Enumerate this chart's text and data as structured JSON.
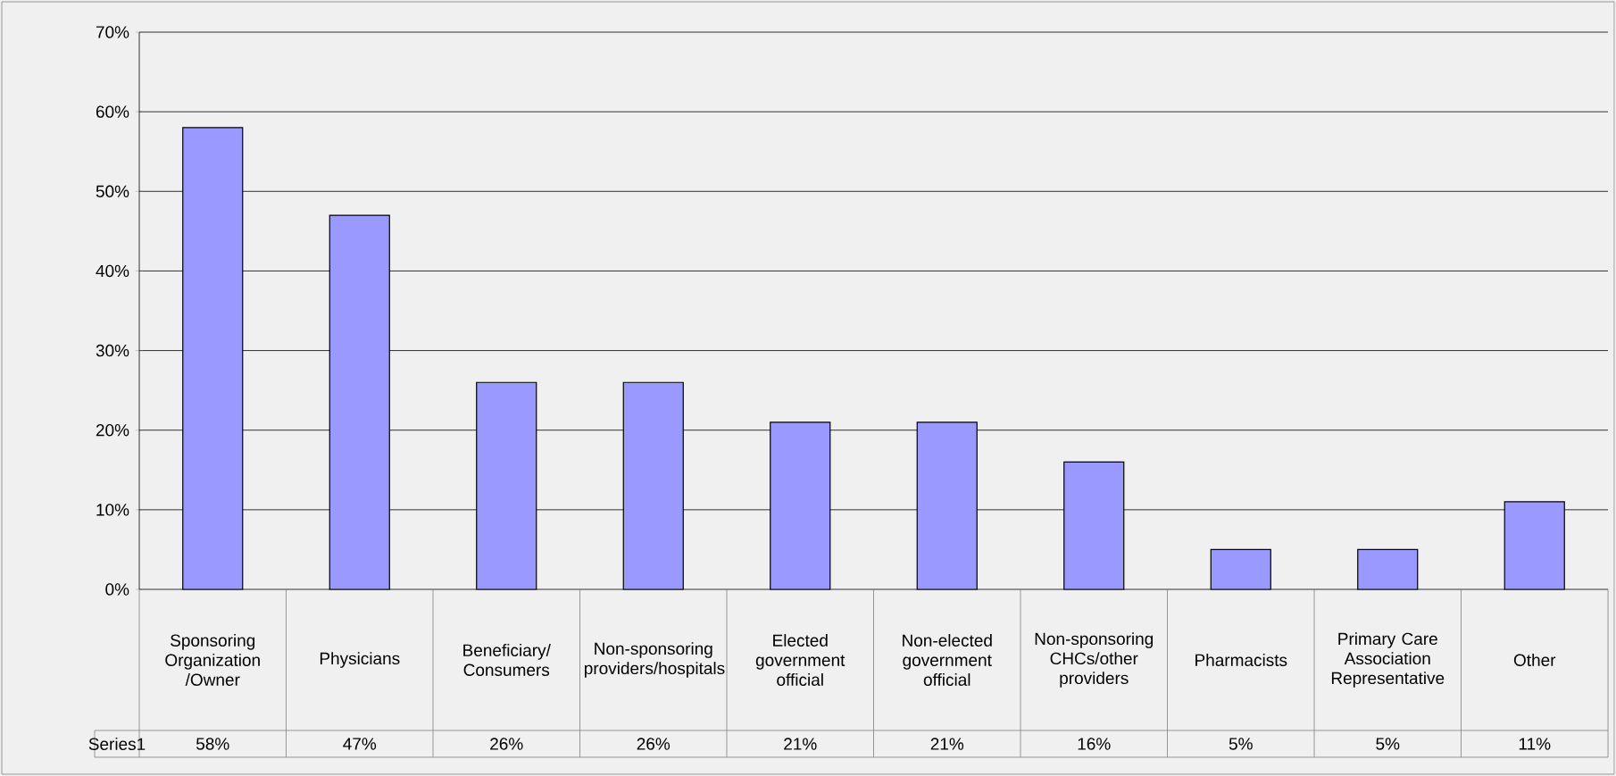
{
  "chart_data": {
    "type": "bar",
    "categories": [
      "Sponsoring Organization /Owner",
      "Physicians",
      "Beneficiary/ Consumers",
      "Non-sponsoring providers/hospitals",
      "Elected government official",
      "Non-elected government official",
      "Non-sponsoring CHCs/other providers",
      "Pharmacists",
      "Primary Care Association Representative",
      "Other"
    ],
    "series": [
      {
        "name": "Series1",
        "color": "#9999ff",
        "values": [
          58,
          47,
          26,
          26,
          21,
          21,
          16,
          5,
          5,
          11
        ],
        "value_labels": [
          "58%",
          "47%",
          "26%",
          "26%",
          "21%",
          "21%",
          "16%",
          "5%",
          "5%",
          "11%"
        ]
      }
    ],
    "ylim": [
      0,
      70
    ],
    "yticks": [
      {
        "value": 0,
        "label": "0%"
      },
      {
        "value": 10,
        "label": "10%"
      },
      {
        "value": 20,
        "label": "20%"
      },
      {
        "value": 30,
        "label": "30%"
      },
      {
        "value": 40,
        "label": "40%"
      },
      {
        "value": 50,
        "label": "50%"
      },
      {
        "value": 60,
        "label": "60%"
      },
      {
        "value": 70,
        "label": "70%"
      }
    ],
    "grid": "y"
  }
}
